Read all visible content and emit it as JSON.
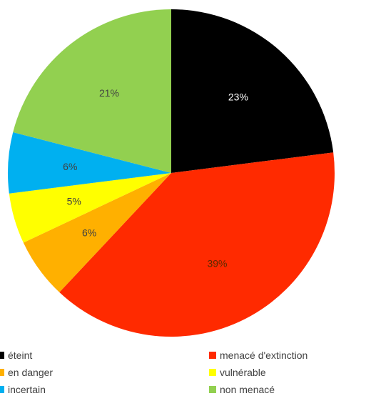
{
  "chart_data": {
    "type": "pie",
    "title": "",
    "slices": [
      {
        "label": "éteint",
        "value": 23,
        "display": "23%",
        "color": "#000000",
        "label_color": "#ffffff"
      },
      {
        "label": "menacé d'extinction",
        "value": 39,
        "display": "39%",
        "color": "#ff2a00",
        "label_color": "#5a2a00"
      },
      {
        "label": "en danger",
        "value": 6,
        "display": "6%",
        "color": "#ffb000",
        "label_color": "#404040"
      },
      {
        "label": "vulnérable",
        "value": 5,
        "display": "5%",
        "color": "#ffff00",
        "label_color": "#404040"
      },
      {
        "label": "incertain",
        "value": 6,
        "display": "6%",
        "color": "#00b0f0",
        "label_color": "#404040"
      },
      {
        "label": "non menacé",
        "value": 21,
        "display": "21%",
        "color": "#92d050",
        "label_color": "#404040"
      }
    ],
    "legend": {
      "position": "bottom",
      "items": [
        "éteint",
        "menacé d'extinction",
        "en danger",
        "vulnérable",
        "incertain",
        "non menacé"
      ]
    }
  }
}
